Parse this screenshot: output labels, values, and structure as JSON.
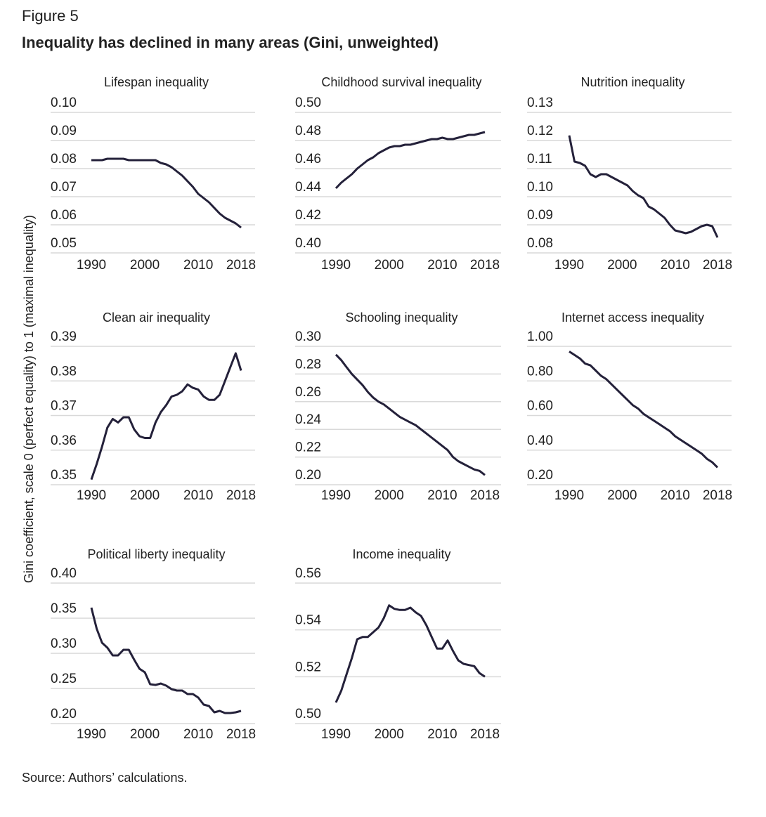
{
  "figure_label": "Figure 5",
  "title": "Inequality has declined in many areas (Gini, unweighted)",
  "y_label": "Gini coefficient, scale 0 (perfect equality) to 1 (maximal inequality)",
  "source": "Source: Authors’ calculations.",
  "chart_data": [
    {
      "type": "line",
      "title": "Lifespan inequality",
      "color": "#24213a",
      "grid": true,
      "x": [
        1990,
        1991,
        1992,
        1993,
        1994,
        1995,
        1996,
        1997,
        1998,
        1999,
        2000,
        2001,
        2002,
        2003,
        2004,
        2005,
        2006,
        2007,
        2008,
        2009,
        2010,
        2011,
        2012,
        2013,
        2014,
        2015,
        2016,
        2017,
        2018
      ],
      "values": [
        0.083,
        0.083,
        0.083,
        0.0835,
        0.0835,
        0.0835,
        0.0835,
        0.083,
        0.083,
        0.083,
        0.083,
        0.083,
        0.083,
        0.082,
        0.0815,
        0.0805,
        0.079,
        0.0775,
        0.0755,
        0.0735,
        0.071,
        0.0695,
        0.068,
        0.066,
        0.064,
        0.0625,
        0.0615,
        0.0605,
        0.059
      ],
      "xlim": [
        1990,
        2018
      ],
      "xticks": [
        1990,
        2000,
        2010,
        2018
      ],
      "ylim": [
        0.05,
        0.1
      ],
      "yticks": [
        0.05,
        0.06,
        0.07,
        0.08,
        0.09,
        {
          "value": 0.1,
          "label": "0.10"
        }
      ]
    },
    {
      "type": "line",
      "title": "Childhood survival inequality",
      "color": "#24213a",
      "grid": true,
      "x": [
        1990,
        1991,
        1992,
        1993,
        1994,
        1995,
        1996,
        1997,
        1998,
        1999,
        2000,
        2001,
        2002,
        2003,
        2004,
        2005,
        2006,
        2007,
        2008,
        2009,
        2010,
        2011,
        2012,
        2013,
        2014,
        2015,
        2016,
        2017,
        2018
      ],
      "values": [
        0.446,
        0.45,
        0.453,
        0.456,
        0.46,
        0.463,
        0.466,
        0.468,
        0.471,
        0.473,
        0.475,
        0.476,
        0.476,
        0.477,
        0.477,
        0.478,
        0.479,
        0.48,
        0.481,
        0.481,
        0.482,
        0.481,
        0.481,
        0.482,
        0.483,
        0.484,
        0.484,
        0.485,
        0.486
      ],
      "xlim": [
        1990,
        2018
      ],
      "xticks": [
        1990,
        2000,
        2010,
        2018
      ],
      "ylim": [
        0.4,
        0.5
      ],
      "yticks": [
        {
          "value": 0.4,
          "label": "0.40"
        },
        0.42,
        0.44,
        0.46,
        0.48,
        {
          "value": 0.5,
          "label": "0.50"
        }
      ]
    },
    {
      "type": "line",
      "title": "Nutrition inequality",
      "color": "#24213a",
      "grid": true,
      "x": [
        1990,
        1991,
        1992,
        1993,
        1994,
        1995,
        1996,
        1997,
        1998,
        1999,
        2000,
        2001,
        2002,
        2003,
        2004,
        2005,
        2006,
        2007,
        2008,
        2009,
        2010,
        2011,
        2012,
        2013,
        2014,
        2015,
        2016,
        2017,
        2018
      ],
      "values": [
        0.1218,
        0.1125,
        0.112,
        0.111,
        0.108,
        0.107,
        0.108,
        0.108,
        0.107,
        0.106,
        0.105,
        0.104,
        0.102,
        0.1005,
        0.0995,
        0.0965,
        0.0955,
        0.094,
        0.0925,
        0.09,
        0.088,
        0.0875,
        0.087,
        0.0875,
        0.0885,
        0.0895,
        0.09,
        0.0895,
        0.0855
      ],
      "xlim": [
        1990,
        2018
      ],
      "xticks": [
        1990,
        2000,
        2010,
        2018
      ],
      "ylim": [
        0.08,
        0.13
      ],
      "yticks": [
        0.08,
        0.09,
        {
          "value": 0.1,
          "label": "0.10"
        },
        0.11,
        0.12,
        0.13
      ]
    },
    {
      "type": "line",
      "title": "Clean air inequality",
      "color": "#24213a",
      "grid": true,
      "x": [
        1990,
        1991,
        1992,
        1993,
        1994,
        1995,
        1996,
        1997,
        1998,
        1999,
        2000,
        2001,
        2002,
        2003,
        2004,
        2005,
        2006,
        2007,
        2008,
        2009,
        2010,
        2011,
        2012,
        2013,
        2014,
        2015,
        2016,
        2017,
        2018
      ],
      "values": [
        0.3515,
        0.356,
        0.361,
        0.3665,
        0.369,
        0.368,
        0.3695,
        0.3695,
        0.366,
        0.364,
        0.3635,
        0.3635,
        0.368,
        0.371,
        0.373,
        0.3755,
        0.376,
        0.377,
        0.379,
        0.378,
        0.3775,
        0.3755,
        0.3745,
        0.3745,
        0.376,
        0.38,
        0.384,
        0.388,
        0.383
      ],
      "xlim": [
        1990,
        2018
      ],
      "xticks": [
        1990,
        2000,
        2010,
        2018
      ],
      "ylim": [
        0.35,
        0.39
      ],
      "yticks": [
        0.35,
        0.36,
        0.37,
        0.38,
        0.39
      ]
    },
    {
      "type": "line",
      "title": "Schooling inequality",
      "color": "#24213a",
      "grid": true,
      "x": [
        1990,
        1991,
        1992,
        1993,
        1994,
        1995,
        1996,
        1997,
        1998,
        1999,
        2000,
        2001,
        2002,
        2003,
        2004,
        2005,
        2006,
        2007,
        2008,
        2009,
        2010,
        2011,
        2012,
        2013,
        2014,
        2015,
        2016,
        2017,
        2018
      ],
      "values": [
        0.294,
        0.29,
        0.285,
        0.28,
        0.276,
        0.272,
        0.267,
        0.263,
        0.26,
        0.258,
        0.255,
        0.252,
        0.249,
        0.247,
        0.245,
        0.243,
        0.24,
        0.237,
        0.234,
        0.231,
        0.228,
        0.225,
        0.22,
        0.217,
        0.215,
        0.213,
        0.211,
        0.21,
        0.207
      ],
      "xlim": [
        1990,
        2018
      ],
      "xticks": [
        1990,
        2000,
        2010,
        2018
      ],
      "ylim": [
        0.2,
        0.3
      ],
      "yticks": [
        {
          "value": 0.2,
          "label": "0.20"
        },
        0.22,
        0.24,
        0.26,
        0.28,
        {
          "value": 0.3,
          "label": "0.30"
        }
      ]
    },
    {
      "type": "line",
      "title": "Internet access inequality",
      "color": "#24213a",
      "grid": true,
      "x": [
        1990,
        1991,
        1992,
        1993,
        1994,
        1995,
        1996,
        1997,
        1998,
        1999,
        2000,
        2001,
        2002,
        2003,
        2004,
        2005,
        2006,
        2007,
        2008,
        2009,
        2010,
        2011,
        2012,
        2013,
        2014,
        2015,
        2016,
        2017,
        2018
      ],
      "values": [
        0.97,
        0.95,
        0.93,
        0.9,
        0.89,
        0.86,
        0.83,
        0.81,
        0.78,
        0.75,
        0.72,
        0.69,
        0.66,
        0.64,
        0.61,
        0.59,
        0.57,
        0.55,
        0.53,
        0.51,
        0.48,
        0.46,
        0.44,
        0.42,
        0.4,
        0.38,
        0.35,
        0.33,
        0.3
      ],
      "xlim": [
        1990,
        2018
      ],
      "xticks": [
        1990,
        2000,
        2010,
        2018
      ],
      "ylim": [
        0.2,
        1
      ],
      "yticks": [
        {
          "value": 0.2,
          "label": "0.20"
        },
        {
          "value": 0.4,
          "label": "0.40"
        },
        {
          "value": 0.6,
          "label": "0.60"
        },
        {
          "value": 0.8,
          "label": "0.80"
        },
        {
          "value": 1,
          "label": "1.00"
        }
      ]
    },
    {
      "type": "line",
      "title": "Political liberty inequality",
      "color": "#24213a",
      "grid": true,
      "x": [
        1990,
        1991,
        1992,
        1993,
        1994,
        1995,
        1996,
        1997,
        1998,
        1999,
        2000,
        2001,
        2002,
        2003,
        2004,
        2005,
        2006,
        2007,
        2008,
        2009,
        2010,
        2011,
        2012,
        2013,
        2014,
        2015,
        2016,
        2017,
        2018
      ],
      "values": [
        0.365,
        0.335,
        0.315,
        0.308,
        0.297,
        0.297,
        0.305,
        0.305,
        0.291,
        0.278,
        0.273,
        0.256,
        0.255,
        0.257,
        0.254,
        0.249,
        0.247,
        0.247,
        0.242,
        0.242,
        0.237,
        0.227,
        0.225,
        0.216,
        0.218,
        0.215,
        0.215,
        0.216,
        0.218
      ],
      "xlim": [
        1990,
        2018
      ],
      "xticks": [
        1990,
        2000,
        2010,
        2018
      ],
      "ylim": [
        0.2,
        0.4
      ],
      "yticks": [
        {
          "value": 0.2,
          "label": "0.20"
        },
        0.25,
        {
          "value": 0.3,
          "label": "0.30"
        },
        0.35,
        {
          "value": 0.4,
          "label": "0.40"
        }
      ]
    },
    {
      "type": "line",
      "title": "Income inequality",
      "color": "#24213a",
      "grid": true,
      "x": [
        1990,
        1991,
        1992,
        1993,
        1994,
        1995,
        1996,
        1997,
        1998,
        1999,
        2000,
        2001,
        2002,
        2003,
        2004,
        2005,
        2006,
        2007,
        2008,
        2009,
        2010,
        2011,
        2012,
        2013,
        2014,
        2015,
        2016,
        2017,
        2018
      ],
      "values": [
        0.509,
        0.514,
        0.521,
        0.528,
        0.536,
        0.537,
        0.537,
        0.539,
        0.541,
        0.545,
        0.5505,
        0.549,
        0.5485,
        0.5485,
        0.5495,
        0.5475,
        0.546,
        0.542,
        0.537,
        0.532,
        0.532,
        0.5355,
        0.531,
        0.527,
        0.5255,
        0.525,
        0.5245,
        0.5215,
        0.52
      ],
      "xlim": [
        1990,
        2018
      ],
      "xticks": [
        1990,
        2000,
        2010,
        2018
      ],
      "ylim": [
        0.5,
        0.56
      ],
      "yticks": [
        {
          "value": 0.5,
          "label": "0.50"
        },
        0.52,
        0.54,
        0.56
      ]
    }
  ]
}
